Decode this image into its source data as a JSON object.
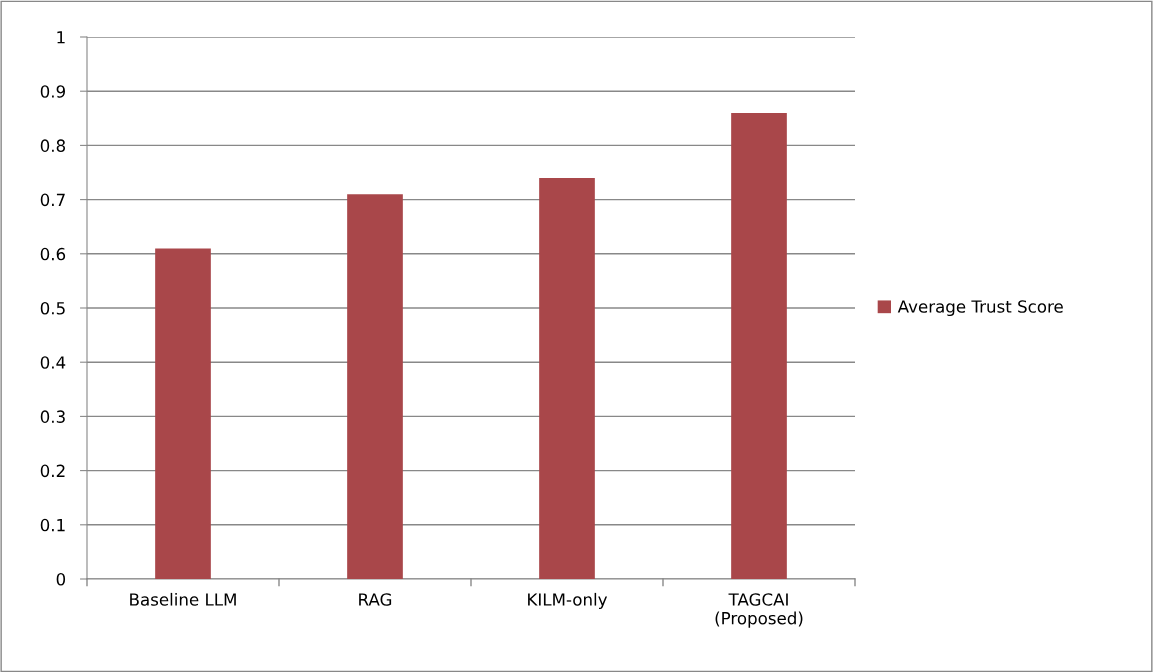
{
  "chart_data": {
    "type": "bar",
    "categories": [
      "Baseline LLM",
      "RAG",
      "KILM-only",
      "TAGCAI\n(Proposed)"
    ],
    "series": [
      {
        "name": "Average Trust Score",
        "color": "#a9474a",
        "values": [
          0.61,
          0.71,
          0.74,
          0.86
        ]
      }
    ],
    "ylim": [
      0,
      1
    ],
    "yticks": [
      0,
      0.1,
      0.2,
      0.3,
      0.4,
      0.5,
      0.6,
      0.7,
      0.8,
      0.9,
      1
    ],
    "grid": "y",
    "legend": "right"
  }
}
